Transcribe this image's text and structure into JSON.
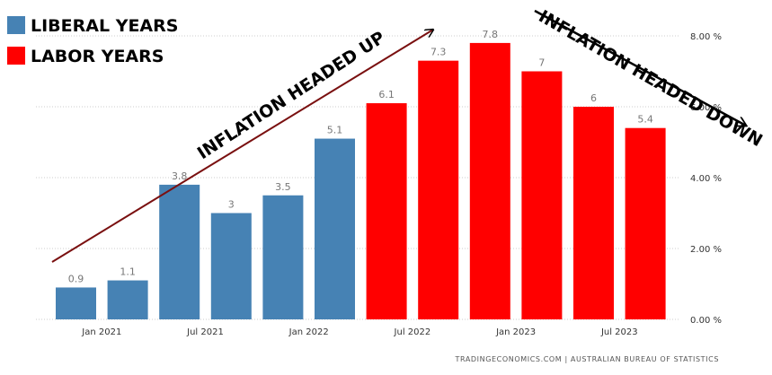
{
  "chart_data": {
    "type": "bar",
    "title": "",
    "xlabel": "",
    "ylabel": "",
    "ylim": [
      0,
      8
    ],
    "y_ticks": [
      "0.00 %",
      "2.00 %",
      "4.00 %",
      "6.00 %",
      "8.00 %"
    ],
    "y_tick_values": [
      0,
      2,
      4,
      6,
      8
    ],
    "x_tick_labels": [
      "Jan 2021",
      "Jul 2021",
      "Jan 2022",
      "Jul 2022",
      "Jan 2023",
      "Jul 2023"
    ],
    "x_tick_bar_index": [
      0.5,
      2.5,
      4.5,
      6.5,
      8.5,
      10.5
    ],
    "grid": true,
    "legend_position": "top-left",
    "series": [
      {
        "name": "LIBERAL YEARS",
        "color": "#4682b4",
        "start_index": 0,
        "values": [
          0.9,
          1.1,
          3.8,
          3,
          3.5,
          5.1
        ],
        "labels": [
          "0.9",
          "1.1",
          "3.8",
          "3",
          "3.5",
          "5.1"
        ]
      },
      {
        "name": "LABOR YEARS",
        "color": "#ff0000",
        "start_index": 6,
        "values": [
          6.1,
          7.3,
          7.8,
          7,
          6,
          5.4
        ],
        "labels": [
          "6.1",
          "7.3",
          "7.8",
          "7",
          "6",
          "5.4"
        ]
      }
    ],
    "annotations": [
      {
        "text": "INFLATION HEADED UP",
        "arrow_color": "#7a1010"
      },
      {
        "text": "INFLATION HEADED DOWN",
        "arrow_color": "#000000"
      }
    ],
    "source": "TRADINGECONOMICS.COM  |  AUSTRALIAN BUREAU OF STATISTICS"
  }
}
